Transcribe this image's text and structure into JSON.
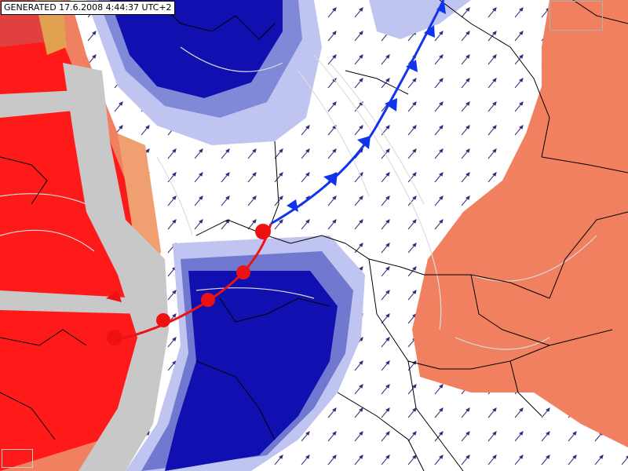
{
  "header": {
    "generated_label": "GENERATED 17.6.2008 4:44:37 UTC+2"
  },
  "map": {
    "type": "weather-forecast-map",
    "fronts": [
      {
        "type": "cold",
        "color": "#1133ee"
      },
      {
        "type": "warm",
        "color": "#ee1111"
      }
    ],
    "colors": {
      "warm_strong": "#ff1a1a",
      "warm_mid": "#f08060",
      "cold_strong": "#1010b0",
      "cold_light": "#c0c4f0",
      "neutral_grey": "#c8c8c8",
      "wind_arrow": "#3a2a7a",
      "border": "#000000",
      "contour": "#dddddd"
    },
    "icons": [
      "wind-arrow-icon",
      "cold-front-triangle-icon",
      "warm-front-semicircle-icon"
    ]
  }
}
